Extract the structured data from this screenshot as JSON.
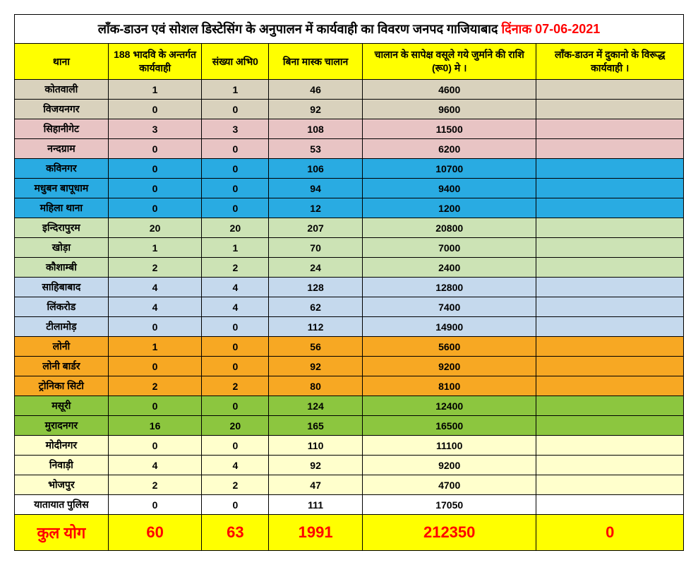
{
  "title_main": "लॉंक-डाउन एवं सोशल डिस्टेसिंग के अनुपालन में कार्यवाही का विवरण जनपद गाजियाबाद",
  "title_date": "दिंनाक 07-06-2021",
  "columns": [
    "थाना",
    "188 भादवि के अन्तर्गत कार्यवाही",
    "संख्या अभि0",
    "बिना मास्क चालान",
    "चालान के सापेक्ष वसूले गये जुर्माने की राशि (रू0) मे ।",
    "लॉंक-डाउन में दुकानो के विरूद्ध कार्यवाही ।"
  ],
  "row_colors": {
    "tan": "#d9d2bd",
    "pink": "#e8c4c4",
    "blue": "#29abe2",
    "lightgreen": "#cce3b5",
    "lightblue": "#c5d9ed",
    "orange": "#f7a823",
    "green": "#8cc63f",
    "lightyellow": "#ffffcc",
    "white": "#ffffff"
  },
  "rows": [
    {
      "color": "tan",
      "c": [
        "कोतवाली",
        "1",
        "1",
        "46",
        "4600",
        ""
      ]
    },
    {
      "color": "tan",
      "c": [
        "विजयनगर",
        "0",
        "0",
        "92",
        "9600",
        ""
      ]
    },
    {
      "color": "pink",
      "c": [
        "सिहानीगेट",
        "3",
        "3",
        "108",
        "11500",
        ""
      ]
    },
    {
      "color": "pink",
      "c": [
        "नन्दग्राम",
        "0",
        "0",
        "53",
        "6200",
        ""
      ]
    },
    {
      "color": "blue",
      "c": [
        "कविनगर",
        "0",
        "0",
        "106",
        "10700",
        ""
      ]
    },
    {
      "color": "blue",
      "c": [
        "मधुबन बापूधाम",
        "0",
        "0",
        "94",
        "9400",
        ""
      ]
    },
    {
      "color": "blue",
      "c": [
        "महिला थाना",
        "0",
        "0",
        "12",
        "1200",
        ""
      ]
    },
    {
      "color": "lightgreen",
      "c": [
        "इन्दिरापुरम",
        "20",
        "20",
        "207",
        "20800",
        ""
      ]
    },
    {
      "color": "lightgreen",
      "c": [
        "खोड़ा",
        "1",
        "1",
        "70",
        "7000",
        ""
      ]
    },
    {
      "color": "lightgreen",
      "c": [
        "कौशाम्बी",
        "2",
        "2",
        "24",
        "2400",
        ""
      ]
    },
    {
      "color": "lightblue",
      "c": [
        "साहिबाबाद",
        "4",
        "4",
        "128",
        "12800",
        ""
      ]
    },
    {
      "color": "lightblue",
      "c": [
        "लिंकरोड",
        "4",
        "4",
        "62",
        "7400",
        ""
      ]
    },
    {
      "color": "lightblue",
      "c": [
        "टीलामोड़",
        "0",
        "0",
        "112",
        "14900",
        ""
      ]
    },
    {
      "color": "orange",
      "c": [
        "लोनी",
        "1",
        "0",
        "56",
        "5600",
        ""
      ]
    },
    {
      "color": "orange",
      "c": [
        "लोनी बार्डर",
        "0",
        "0",
        "92",
        "9200",
        ""
      ]
    },
    {
      "color": "orange",
      "c": [
        "ट्रोनिका सिटी",
        "2",
        "2",
        "80",
        "8100",
        ""
      ]
    },
    {
      "color": "green",
      "c": [
        "मसूरी",
        "0",
        "0",
        "124",
        "12400",
        ""
      ]
    },
    {
      "color": "green",
      "c": [
        "मुरादनगर",
        "16",
        "20",
        "165",
        "16500",
        ""
      ]
    },
    {
      "color": "lightyellow",
      "c": [
        "मोदीनगर",
        "0",
        "0",
        "110",
        "11100",
        ""
      ]
    },
    {
      "color": "lightyellow",
      "c": [
        "निवाड़ी",
        "4",
        "4",
        "92",
        "9200",
        ""
      ]
    },
    {
      "color": "lightyellow",
      "c": [
        "भोजपुर",
        "2",
        "2",
        "47",
        "4700",
        ""
      ]
    },
    {
      "color": "white",
      "c": [
        "यातायात पुलिस",
        "0",
        "0",
        "111",
        "17050",
        ""
      ]
    }
  ],
  "total": {
    "label": "कुल योग",
    "c": [
      "60",
      "63",
      "1991",
      "212350",
      "0"
    ]
  }
}
